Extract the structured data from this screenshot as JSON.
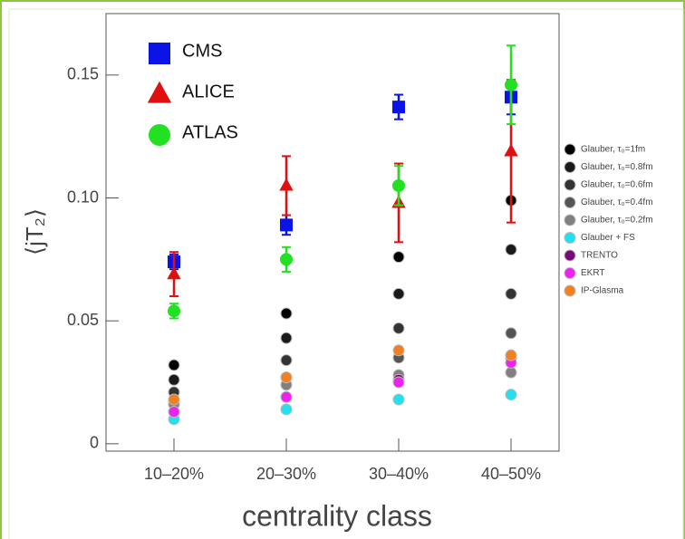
{
  "chart_data": {
    "type": "scatter",
    "x_label": "centrality class",
    "y_label": "⟨jT₂⟩",
    "categories": [
      "10–20%",
      "20–30%",
      "30–40%",
      "40–50%"
    ],
    "ylim": [
      -0.003,
      0.175
    ],
    "yticks": [
      0,
      0.05,
      {
        "value": 0.1,
        "label": "0.10"
      },
      0.15
    ],
    "legend": "upper left",
    "series": [
      {
        "name": "CMS",
        "color": "#0a14e6",
        "marker": "square",
        "values": [
          0.074,
          0.089,
          0.137,
          0.141
        ],
        "errors": [
          0.003,
          0.004,
          0.005,
          0.007
        ]
      },
      {
        "name": "ALICE",
        "color": "#e01010",
        "marker": "triangle",
        "values": [
          0.069,
          0.105,
          0.098,
          0.119
        ],
        "errors": [
          0.009,
          0.012,
          0.016,
          0.029
        ]
      },
      {
        "name": "ATLAS",
        "color": "#22e022",
        "marker": "circle",
        "values": [
          0.054,
          0.075,
          0.105,
          0.146
        ],
        "errors": [
          0.003,
          0.005,
          0.008,
          0.016
        ]
      }
    ],
    "model_legend": "outside right",
    "model_series": [
      {
        "name": "Glauber, τ₀=1fm",
        "color": "#000000",
        "values": [
          0.032,
          0.053,
          0.076,
          0.099
        ]
      },
      {
        "name": "Glauber, τ₀=0.8fm",
        "color": "#1a1a1a",
        "values": [
          0.026,
          0.043,
          0.061,
          0.079
        ]
      },
      {
        "name": "Glauber, τ₀=0.6fm",
        "color": "#333333",
        "values": [
          0.021,
          0.034,
          0.047,
          0.061
        ]
      },
      {
        "name": "Glauber, τ₀=0.4fm",
        "color": "#555555",
        "values": [
          0.017,
          0.027,
          0.035,
          0.045
        ]
      },
      {
        "name": "Glauber, τ₀=0.2fm",
        "color": "#808080",
        "values": [
          0.016,
          0.024,
          0.028,
          0.029
        ]
      },
      {
        "name": "Glauber + FS",
        "color": "#22e0f0",
        "values": [
          0.01,
          0.014,
          0.018,
          0.02
        ]
      },
      {
        "name": "TRENTO",
        "color": "#7a0a7a",
        "values": [
          0.013,
          0.019,
          0.026,
          0.035
        ]
      },
      {
        "name": "EKRT",
        "color": "#ee22ee",
        "values": [
          0.013,
          0.019,
          0.025,
          0.033
        ]
      },
      {
        "name": "IP-Glasma",
        "color": "#f08020",
        "values": [
          0.018,
          0.027,
          0.038,
          0.036
        ]
      }
    ]
  }
}
